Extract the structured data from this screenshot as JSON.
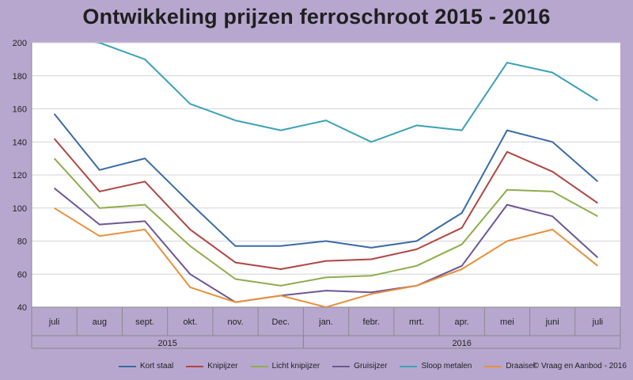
{
  "title": "Ontwikkeling prijzen ferroschroot 2015 - 2016",
  "copyright": "© Vraag en Aanbod - 2016",
  "chart_data": {
    "type": "line",
    "title": "Ontwikkeling prijzen ferroschroot 2015 - 2016",
    "categories": [
      "juli",
      "aug",
      "sept.",
      "okt.",
      "nov.",
      "Dec.",
      "jan.",
      "febr.",
      "mrt.",
      "apr.",
      "mei",
      "juni",
      "juli"
    ],
    "groups": [
      {
        "label": "2015",
        "span": 6
      },
      {
        "label": "2016",
        "span": 7
      }
    ],
    "ylim": [
      40,
      200
    ],
    "yticks": [
      40,
      60,
      80,
      100,
      120,
      140,
      160,
      180,
      200
    ],
    "grid": true,
    "legend": "bottom",
    "series": [
      {
        "name": "Kort staal",
        "color": "#3b6ba5",
        "values": [
          157,
          123,
          130,
          103,
          77,
          77,
          80,
          76,
          80,
          97,
          147,
          140,
          116
        ]
      },
      {
        "name": "Knipijzer",
        "color": "#b04543",
        "values": [
          142,
          110,
          116,
          87,
          67,
          63,
          68,
          69,
          75,
          88,
          134,
          122,
          103
        ]
      },
      {
        "name": "Licht knipijzer",
        "color": "#8fad4c",
        "values": [
          130,
          100,
          102,
          77,
          57,
          53,
          58,
          59,
          65,
          78,
          111,
          110,
          95
        ]
      },
      {
        "name": "Gruisijzer",
        "color": "#6d5794",
        "values": [
          112,
          90,
          92,
          60,
          43,
          47,
          50,
          49,
          53,
          65,
          102,
          95,
          70
        ]
      },
      {
        "name": "Sloop metalen",
        "color": "#3ba2b7",
        "values": [
          204,
          200,
          190,
          163,
          153,
          147,
          153,
          140,
          150,
          147,
          188,
          182,
          165
        ]
      },
      {
        "name": "Draaisel",
        "color": "#e8903c",
        "values": [
          100,
          83,
          87,
          52,
          43,
          47,
          40,
          48,
          53,
          63,
          80,
          87,
          65
        ]
      }
    ]
  }
}
